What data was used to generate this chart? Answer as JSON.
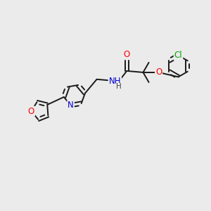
{
  "bg_color": "#ebebeb",
  "bond_color": "#1a1a1a",
  "atom_colors": {
    "O": "#ff0000",
    "N": "#0000cc",
    "Cl": "#00aa00",
    "H": "#444444",
    "C": "#1a1a1a"
  },
  "bond_width": 1.4,
  "font_size": 8.5,
  "figsize": [
    3.0,
    3.0
  ],
  "dpi": 100,
  "xlim": [
    0,
    10
  ],
  "ylim": [
    0,
    10
  ]
}
